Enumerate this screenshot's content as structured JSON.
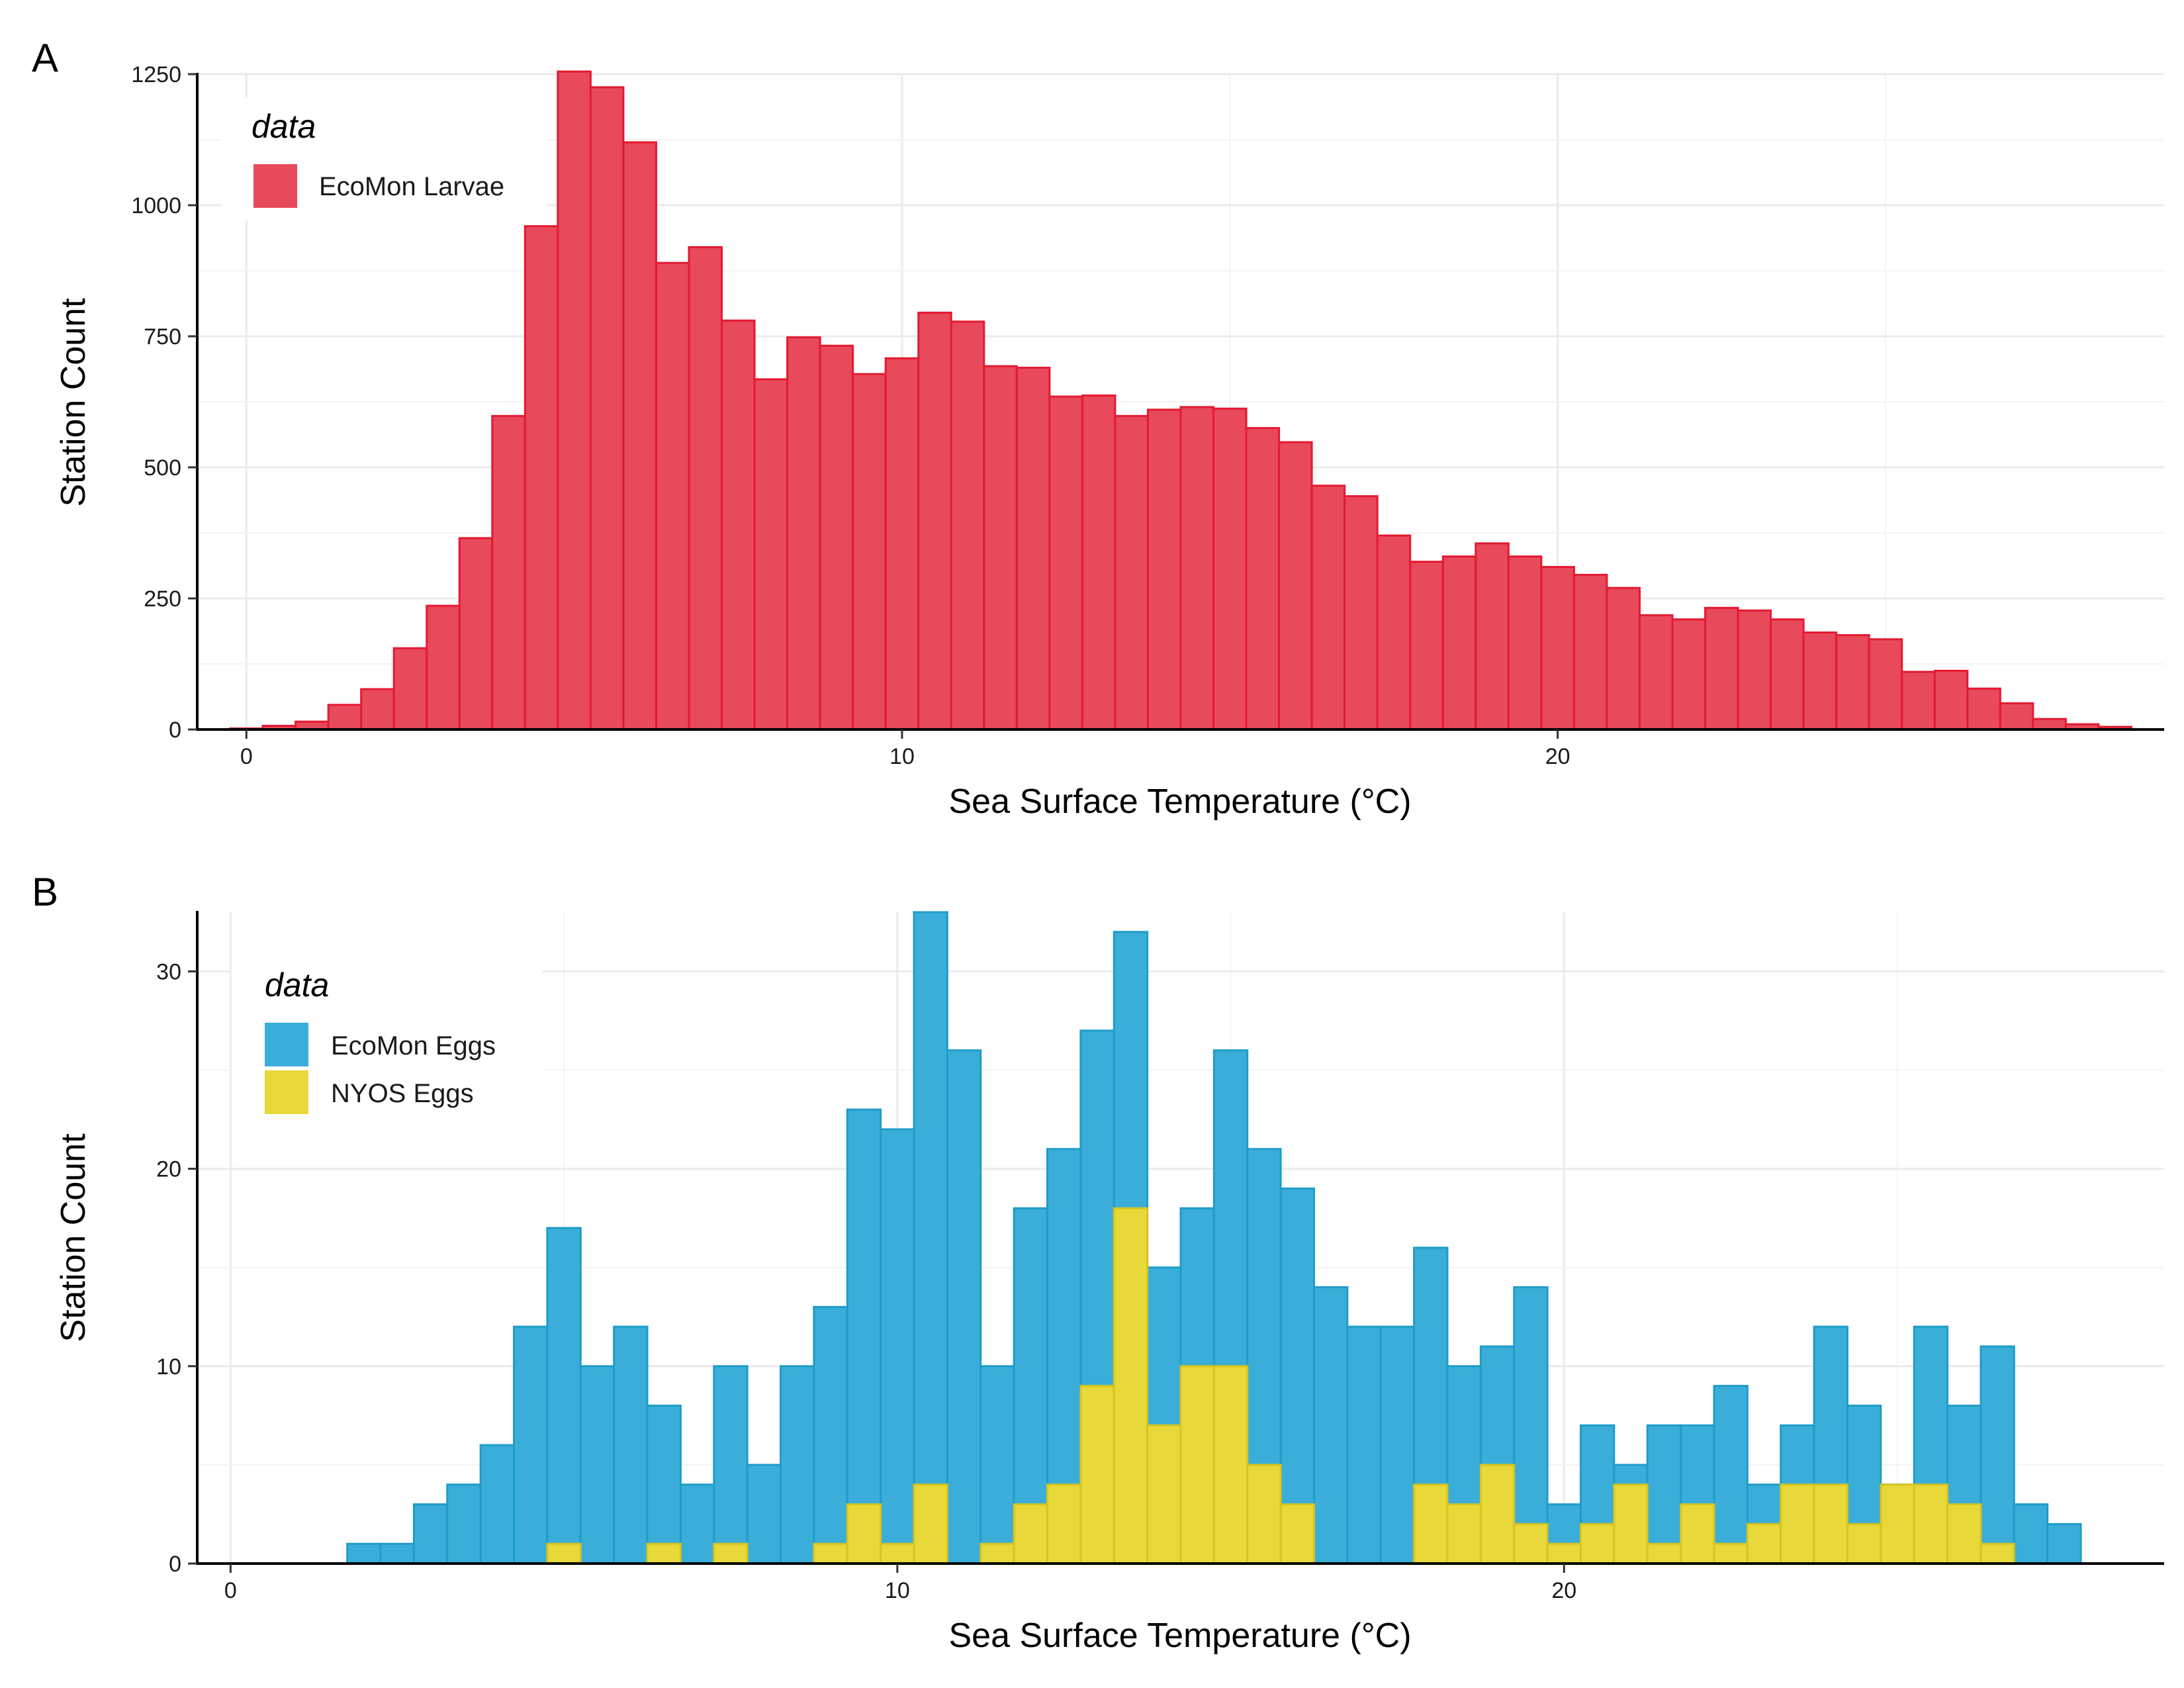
{
  "chart_data": [
    {
      "panel": "A",
      "type": "bar",
      "subtype": "histogram",
      "title": "",
      "xlabel": "Sea Surface Temperature (°C)",
      "ylabel": "Station Count",
      "xlim": [
        -0.75,
        29.25
      ],
      "ylim": [
        0,
        1250
      ],
      "xticks": [
        0,
        10,
        20
      ],
      "yticks": [
        0,
        250,
        500,
        750,
        1000,
        1250
      ],
      "grid": true,
      "legend": {
        "title": "data",
        "position": "top-left"
      },
      "bin_start": -0.25,
      "bin_width": 0.5,
      "series": [
        {
          "name": "EcoMon Larvae",
          "color": "#E8495B",
          "edge": "#E31A32",
          "values": [
            2,
            7,
            15,
            47,
            77,
            155,
            236,
            365,
            598,
            960,
            1255,
            1225,
            1120,
            890,
            920,
            780,
            668,
            748,
            732,
            678,
            708,
            795,
            778,
            693,
            690,
            635,
            637,
            598,
            610,
            615,
            612,
            575,
            548,
            465,
            445,
            370,
            320,
            330,
            355,
            330,
            310,
            295,
            270,
            218,
            210,
            232,
            227,
            210,
            185,
            180,
            172,
            110,
            112,
            78,
            50,
            20,
            10,
            5
          ]
        }
      ]
    },
    {
      "panel": "B",
      "type": "bar",
      "subtype": "histogram",
      "title": "",
      "xlabel": "Sea Surface Temperature (°C)",
      "ylabel": "Station Count",
      "xlim": [
        -0.5,
        29.0
      ],
      "ylim": [
        0,
        33
      ],
      "xticks": [
        0,
        10,
        20
      ],
      "yticks": [
        0,
        10,
        20,
        30
      ],
      "grid": true,
      "legend": {
        "title": "data",
        "position": "top-left"
      },
      "bin_start": 1.75,
      "bin_width": 0.5,
      "series": [
        {
          "name": "EcoMon Eggs",
          "color": "#3AAED8",
          "edge": "#1F9CC9",
          "values": [
            1,
            1,
            3,
            4,
            6,
            12,
            17,
            10,
            12,
            8,
            4,
            10,
            5,
            10,
            13,
            23,
            22,
            33,
            26,
            10,
            18,
            21,
            27,
            32,
            15,
            18,
            26,
            21,
            19,
            14,
            12,
            12,
            16,
            10,
            11,
            14,
            3,
            7,
            5,
            7,
            7,
            9,
            4,
            7,
            12,
            8,
            4,
            12,
            8,
            11,
            3,
            2
          ]
        },
        {
          "name": "NYOS Eggs",
          "color": "#E8D83A",
          "edge": "#D6C41F",
          "values": [
            0,
            0,
            0,
            0,
            0,
            0,
            1,
            0,
            0,
            1,
            0,
            1,
            0,
            0,
            1,
            3,
            1,
            4,
            0,
            1,
            3,
            4,
            9,
            18,
            7,
            10,
            10,
            5,
            3,
            0,
            0,
            0,
            4,
            3,
            5,
            2,
            1,
            2,
            4,
            1,
            3,
            1,
            2,
            4,
            4,
            2,
            4,
            4,
            3,
            1,
            0,
            0
          ]
        }
      ]
    }
  ]
}
